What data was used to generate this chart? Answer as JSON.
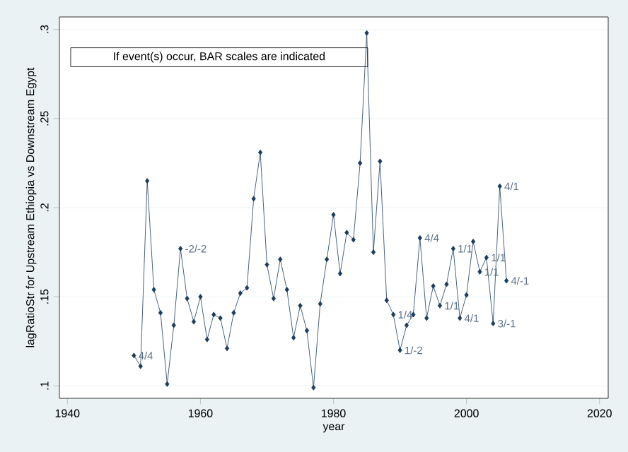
{
  "chart_data": {
    "type": "line",
    "xlabel": "year",
    "ylabel": "lagRatioStr for Upstream Ethiopia vs Downstream Egypt",
    "x": [
      1950,
      1951,
      1952,
      1953,
      1954,
      1955,
      1956,
      1957,
      1958,
      1959,
      1960,
      1961,
      1962,
      1963,
      1964,
      1965,
      1966,
      1967,
      1968,
      1969,
      1970,
      1971,
      1972,
      1973,
      1974,
      1975,
      1976,
      1977,
      1978,
      1979,
      1980,
      1981,
      1982,
      1983,
      1984,
      1985,
      1986,
      1987,
      1988,
      1989,
      1990,
      1991,
      1992,
      1993,
      1994,
      1995,
      1996,
      1997,
      1998,
      1999,
      2000,
      2001,
      2002,
      2003,
      2004,
      2005,
      2006
    ],
    "series": [
      {
        "color": "#1a3c5e",
        "values": [
          0.117,
          0.111,
          0.215,
          0.154,
          0.141,
          0.101,
          0.134,
          0.177,
          0.149,
          0.136,
          0.15,
          0.126,
          0.14,
          0.138,
          0.121,
          0.141,
          0.152,
          0.155,
          0.205,
          0.231,
          0.168,
          0.149,
          0.171,
          0.154,
          0.127,
          0.145,
          0.131,
          0.099,
          0.146,
          0.171,
          0.196,
          0.163,
          0.186,
          0.182,
          0.225,
          0.298,
          0.175,
          0.226,
          0.148,
          0.14,
          0.12,
          0.134,
          0.14,
          0.183,
          0.138,
          0.156,
          0.145,
          0.157,
          0.177,
          0.138,
          0.151,
          0.181,
          0.164,
          0.172,
          0.135,
          0.212,
          0.159
        ]
      }
    ],
    "xlim": [
      1938.8,
      2021.3
    ],
    "ylim": [
      0.093,
      0.307
    ],
    "xticks": [
      1940,
      1960,
      1980,
      2000,
      2020
    ],
    "yticks": [
      {
        "value": 0.1,
        "label": ".1"
      },
      {
        "value": 0.15,
        "label": ".15"
      },
      {
        "value": 0.2,
        "label": ".2"
      },
      {
        "value": 0.25,
        "label": ".25"
      },
      {
        "value": 0.3,
        "label": ".3"
      }
    ],
    "grid": "y",
    "marker": "diamond",
    "line_style": "solid",
    "annotations": [
      "If event(s) occur, BAR scales are indicated",
      {
        "text": "4/4",
        "x": 1950,
        "y": 0.117
      },
      {
        "text": "-2/-2",
        "x": 1957,
        "y": 0.177
      },
      {
        "text": "1/4",
        "x": 1989,
        "y": 0.14
      },
      {
        "text": "1/-2",
        "x": 1990,
        "y": 0.12
      },
      {
        "text": "4/4",
        "x": 1993,
        "y": 0.183
      },
      {
        "text": "1/1",
        "x": 1996,
        "y": 0.145
      },
      {
        "text": "1/1",
        "x": 1998,
        "y": 0.177
      },
      {
        "text": "4/1",
        "x": 1999,
        "y": 0.138
      },
      {
        "text": "1/1",
        "x": 2002,
        "y": 0.164
      },
      {
        "text": "1/1",
        "x": 2003,
        "y": 0.172
      },
      {
        "text": "3/-1",
        "x": 2004,
        "y": 0.135
      },
      {
        "text": "4/1",
        "x": 2005,
        "y": 0.212
      },
      {
        "text": "4/-1",
        "x": 2006,
        "y": 0.159
      }
    ]
  }
}
